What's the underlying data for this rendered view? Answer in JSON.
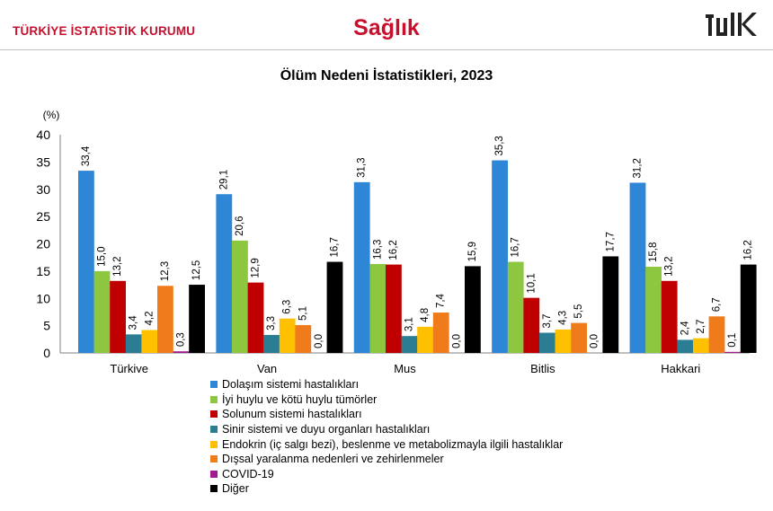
{
  "header": {
    "org": "TÜRKİYE İSTATİSTİK KURUMU",
    "title": "Sağlık",
    "logo_text": "TÜİK"
  },
  "chart_data": {
    "type": "bar",
    "title": "Ölüm Nedeni İstatistikleri, 2023",
    "ylabel": "(%)",
    "xlabel": "",
    "ylim": [
      0,
      40
    ],
    "yticks": [
      0,
      5,
      10,
      15,
      20,
      25,
      30,
      35,
      40
    ],
    "grid": false,
    "legend_position": "bottom",
    "categories": [
      "Türkiye",
      "Van",
      "Muş",
      "Bitlis",
      "Hakkari"
    ],
    "series": [
      {
        "name": "Dolaşım sistemi hastalıkları",
        "color": "#2e86d6",
        "values": [
          33.4,
          29.1,
          31.3,
          35.3,
          31.2
        ],
        "labels": [
          "33,4",
          "29,1",
          "31,3",
          "35,3",
          "31,2"
        ]
      },
      {
        "name": "İyi huylu ve kötü huylu tümörler",
        "color": "#8dc63f",
        "values": [
          15.0,
          20.6,
          16.3,
          16.7,
          15.8
        ],
        "labels": [
          "15,0",
          "20,6",
          "16,3",
          "16,7",
          "15,8"
        ]
      },
      {
        "name": "Solunum sistemi hastalıkları",
        "color": "#c00000",
        "values": [
          13.2,
          12.9,
          16.2,
          10.1,
          13.2
        ],
        "labels": [
          "13,2",
          "12,9",
          "16,2",
          "10,1",
          "13,2"
        ]
      },
      {
        "name": "Sinir sistemi ve duyu organları hastalıkları",
        "color": "#2a7d92",
        "values": [
          3.4,
          3.3,
          3.1,
          3.7,
          2.4
        ],
        "labels": [
          "3,4",
          "3,3",
          "3,1",
          "3,7",
          "2,4"
        ]
      },
      {
        "name": "Endokrin (iç salgı bezi), beslenme ve metabolizmayla ilgili hastalıklar",
        "color": "#ffc000",
        "values": [
          4.2,
          6.3,
          4.8,
          4.3,
          2.7
        ],
        "labels": [
          "4,2",
          "6,3",
          "4,8",
          "4,3",
          "2,7"
        ]
      },
      {
        "name": "Dışsal yaralanma nedenleri ve zehirlenmeler",
        "color": "#f07b1a",
        "values": [
          12.3,
          5.1,
          7.4,
          5.5,
          6.7
        ],
        "labels": [
          "12,3",
          "5,1",
          "7,4",
          "5,5",
          "6,7"
        ]
      },
      {
        "name": "COVID-19",
        "color": "#a01c8c",
        "values": [
          0.3,
          0.0,
          0.0,
          0.0,
          0.1
        ],
        "labels": [
          "0,3",
          "0,0",
          "0,0",
          "0,0",
          "0,1"
        ]
      },
      {
        "name": "Diğer",
        "color": "#000000",
        "values": [
          12.5,
          16.7,
          15.9,
          17.7,
          16.2
        ],
        "labels": [
          "12,5",
          "16,7",
          "15,9",
          "17,7",
          "16,2"
        ]
      }
    ]
  }
}
